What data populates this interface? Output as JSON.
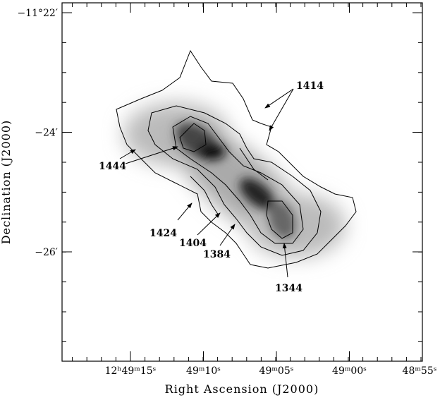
{
  "figure": {
    "x_axis": {
      "label": "Right Ascension (J2000)",
      "ticks": [
        "12ʰ49ᵐ15ˢ",
        "49ᵐ10ˢ",
        "49ᵐ05ˢ",
        "49ᵐ00ˢ",
        "48ᵐ55ˢ"
      ]
    },
    "y_axis": {
      "label": "Declination (J2000)",
      "ticks": [
        "−11°22′",
        "−24′",
        "−26′"
      ]
    },
    "annotations": [
      "1414",
      "1444",
      "1424",
      "1404",
      "1384",
      "1344"
    ]
  }
}
